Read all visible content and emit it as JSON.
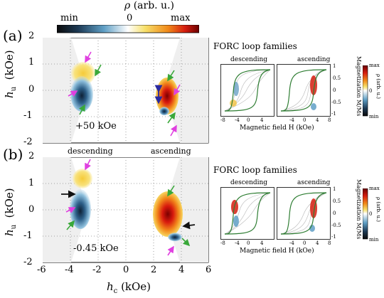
{
  "colorbar": {
    "symbol": "ρ",
    "unit": "(arb. u.)",
    "min": "min",
    "zero": "0",
    "max": "max"
  },
  "panels": [
    {
      "letter": "(a)",
      "field_annotation": "+50 kOe",
      "inset_title": "FORC loop families",
      "inset_left_title": "descending",
      "inset_right_title": "ascending"
    },
    {
      "letter": "(b)",
      "field_annotation": "-0.45 kOe",
      "inset_title": "FORC loop families",
      "inset_left_title": "descending",
      "inset_right_title": "ascending"
    }
  ],
  "main_axes": {
    "y_label_main": "h",
    "y_label_sub": "u",
    "y_label_unit": "(kOe)",
    "x_label_main": "h",
    "x_label_sub": "c",
    "x_label_unit": "(kOe)",
    "y_ticks": [
      "2",
      "1",
      "0",
      "-1",
      "-2"
    ],
    "x_ticks": [
      "-6",
      "-4",
      "-2",
      "0",
      "2",
      "4",
      "6"
    ],
    "between_labels": [
      "descending",
      "ascending"
    ]
  },
  "inset_axes": {
    "x_label": "Magnetic field H (kOe)",
    "x_ticks": [
      "-8",
      "-4",
      "0",
      "4",
      "-4",
      "0",
      "4",
      "8"
    ],
    "y_label": "Magnetization M/Ms",
    "y_ticks": [
      "1",
      "0.5",
      "0",
      "-0.5",
      "-1"
    ],
    "cbar_label": "ρ (arb. u.)",
    "cbar_max": "max",
    "cbar_zero": "0",
    "cbar_min": "min"
  },
  "colors": {
    "magenta_arrow": "#e040e0",
    "green_arrow": "#3aa83a",
    "blue_arrow": "#2a2aa0",
    "black_arrow": "#111111",
    "loop_green": "#2e7d32"
  }
}
